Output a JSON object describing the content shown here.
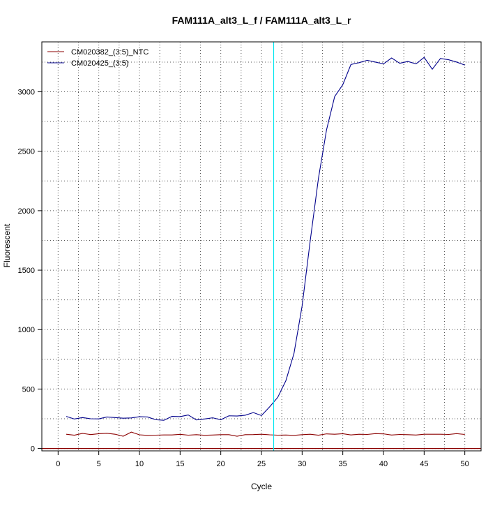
{
  "chart_data": {
    "type": "line",
    "title": "FAM111A_alt3_L_f / FAM111A_alt3_L_r",
    "xlabel": "Cycle",
    "ylabel": "Fluorescent",
    "xlim": [
      -2,
      52
    ],
    "ylim": [
      -20,
      3420
    ],
    "x_ticks": [
      0,
      5,
      10,
      15,
      20,
      25,
      30,
      35,
      40,
      45,
      50
    ],
    "y_ticks": [
      0,
      500,
      1000,
      1500,
      2000,
      2500,
      3000
    ],
    "grid": true,
    "legend_position": "top-left",
    "threshold": {
      "axis": "x",
      "value": 26.5,
      "color": "#00e5ee"
    },
    "baseline": {
      "axis": "y",
      "value": 0,
      "color": "#8b0000"
    },
    "series": [
      {
        "name": "CM020382_(3:5)_NTC",
        "color": "#8b0000",
        "x": [
          1,
          2,
          3,
          4,
          5,
          6,
          7,
          8,
          9,
          10,
          11,
          12,
          13,
          14,
          15,
          16,
          17,
          18,
          19,
          20,
          21,
          22,
          23,
          24,
          25,
          26,
          27,
          28,
          29,
          30,
          31,
          32,
          33,
          34,
          35,
          36,
          37,
          38,
          39,
          40,
          41,
          42,
          43,
          44,
          45,
          46,
          47,
          48,
          49,
          50
        ],
        "y": [
          120,
          112,
          127,
          117,
          124,
          128,
          120,
          103,
          138,
          115,
          110,
          112,
          114,
          114,
          119,
          112,
          116,
          111,
          113,
          116,
          116,
          103,
          116,
          117,
          120,
          115,
          112,
          113,
          110,
          116,
          120,
          112,
          123,
          120,
          124,
          114,
          120,
          118,
          125,
          123,
          113,
          118,
          116,
          113,
          120,
          120,
          120,
          118,
          125,
          118
        ]
      },
      {
        "name": "CM020425_(3:5)",
        "color": "#00008b",
        "x": [
          1,
          2,
          3,
          4,
          5,
          6,
          7,
          8,
          9,
          10,
          11,
          12,
          13,
          14,
          15,
          16,
          17,
          18,
          19,
          20,
          21,
          22,
          23,
          24,
          25,
          26,
          27,
          28,
          29,
          30,
          31,
          32,
          33,
          34,
          35,
          36,
          37,
          38,
          39,
          40,
          41,
          42,
          43,
          44,
          45,
          46,
          47,
          48,
          49,
          50
        ],
        "y": [
          270,
          248,
          260,
          250,
          249,
          265,
          260,
          255,
          257,
          267,
          265,
          242,
          237,
          270,
          268,
          282,
          240,
          248,
          258,
          242,
          275,
          273,
          280,
          302,
          277,
          350,
          430,
          570,
          800,
          1200,
          1750,
          2270,
          2680,
          2960,
          3060,
          3230,
          3245,
          3265,
          3250,
          3235,
          3285,
          3240,
          3255,
          3235,
          3290,
          3190,
          3280,
          3270,
          3250,
          3225
        ]
      }
    ]
  }
}
